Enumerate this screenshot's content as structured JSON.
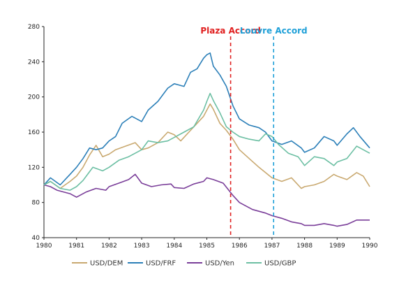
{
  "chart_data": {
    "type": "line",
    "title": "",
    "xlabel": "",
    "ylabel": "",
    "xlim": [
      1980,
      1990
    ],
    "ylim": [
      40,
      280
    ],
    "x_ticks": [
      1980,
      1981,
      1982,
      1983,
      1984,
      1985,
      1986,
      1987,
      1988,
      1989,
      1990
    ],
    "y_ticks": [
      40,
      80,
      120,
      160,
      200,
      240,
      280
    ],
    "grid": false,
    "legend_position": "bottom",
    "series": [
      {
        "name": "USD/DEM",
        "color": "#c9a970",
        "points": [
          [
            1980,
            100
          ],
          [
            1980.2,
            104
          ],
          [
            1980.5,
            96
          ],
          [
            1980.8,
            104
          ],
          [
            1981,
            110
          ],
          [
            1981.2,
            120
          ],
          [
            1981.4,
            134
          ],
          [
            1981.6,
            145
          ],
          [
            1981.8,
            132
          ],
          [
            1982,
            135
          ],
          [
            1982.2,
            140
          ],
          [
            1982.5,
            144
          ],
          [
            1982.8,
            148
          ],
          [
            1983,
            140
          ],
          [
            1983.2,
            142
          ],
          [
            1983.5,
            148
          ],
          [
            1983.8,
            160
          ],
          [
            1984,
            157
          ],
          [
            1984.2,
            150
          ],
          [
            1984.5,
            162
          ],
          [
            1984.7,
            170
          ],
          [
            1984.9,
            178
          ],
          [
            1985,
            185
          ],
          [
            1985.1,
            192
          ],
          [
            1985.2,
            186
          ],
          [
            1985.4,
            170
          ],
          [
            1985.6,
            162
          ],
          [
            1985.8,
            152
          ],
          [
            1986,
            140
          ],
          [
            1986.3,
            130
          ],
          [
            1986.6,
            120
          ],
          [
            1986.8,
            114
          ],
          [
            1987,
            108
          ],
          [
            1987.3,
            104
          ],
          [
            1987.6,
            108
          ],
          [
            1987.9,
            96
          ],
          [
            1988,
            98
          ],
          [
            1988.3,
            100
          ],
          [
            1988.6,
            104
          ],
          [
            1988.9,
            112
          ],
          [
            1989,
            110
          ],
          [
            1989.3,
            106
          ],
          [
            1989.6,
            114
          ],
          [
            1989.8,
            110
          ],
          [
            1990,
            98
          ]
        ]
      },
      {
        "name": "USD/FRF",
        "color": "#2b7fb8",
        "points": [
          [
            1980,
            100
          ],
          [
            1980.2,
            108
          ],
          [
            1980.5,
            100
          ],
          [
            1980.8,
            112
          ],
          [
            1981,
            120
          ],
          [
            1981.2,
            130
          ],
          [
            1981.4,
            142
          ],
          [
            1981.6,
            140
          ],
          [
            1981.8,
            142
          ],
          [
            1982,
            150
          ],
          [
            1982.2,
            155
          ],
          [
            1982.4,
            170
          ],
          [
            1982.7,
            178
          ],
          [
            1983,
            172
          ],
          [
            1983.2,
            185
          ],
          [
            1983.5,
            195
          ],
          [
            1983.8,
            210
          ],
          [
            1984,
            215
          ],
          [
            1984.3,
            212
          ],
          [
            1984.5,
            228
          ],
          [
            1984.7,
            232
          ],
          [
            1984.9,
            244
          ],
          [
            1985,
            248
          ],
          [
            1985.1,
            250
          ],
          [
            1985.2,
            235
          ],
          [
            1985.4,
            225
          ],
          [
            1985.6,
            212
          ],
          [
            1985.8,
            190
          ],
          [
            1986,
            175
          ],
          [
            1986.3,
            168
          ],
          [
            1986.6,
            165
          ],
          [
            1986.8,
            160
          ],
          [
            1987,
            150
          ],
          [
            1987.3,
            146
          ],
          [
            1987.6,
            150
          ],
          [
            1987.9,
            142
          ],
          [
            1988,
            137
          ],
          [
            1988.3,
            142
          ],
          [
            1988.6,
            155
          ],
          [
            1988.9,
            150
          ],
          [
            1989,
            145
          ],
          [
            1989.3,
            158
          ],
          [
            1989.5,
            165
          ],
          [
            1989.7,
            155
          ],
          [
            1990,
            142
          ]
        ]
      },
      {
        "name": "USD/Yen",
        "color": "#7a3e99",
        "points": [
          [
            1980,
            100
          ],
          [
            1980.2,
            98
          ],
          [
            1980.4,
            94
          ],
          [
            1980.6,
            92
          ],
          [
            1980.8,
            90
          ],
          [
            1981,
            86
          ],
          [
            1981.3,
            92
          ],
          [
            1981.6,
            96
          ],
          [
            1981.9,
            94
          ],
          [
            1982,
            98
          ],
          [
            1982.3,
            102
          ],
          [
            1982.6,
            106
          ],
          [
            1982.8,
            112
          ],
          [
            1983,
            102
          ],
          [
            1983.3,
            98
          ],
          [
            1983.6,
            100
          ],
          [
            1983.9,
            101
          ],
          [
            1984,
            97
          ],
          [
            1984.3,
            96
          ],
          [
            1984.6,
            101
          ],
          [
            1984.9,
            104
          ],
          [
            1985,
            108
          ],
          [
            1985.2,
            106
          ],
          [
            1985.5,
            102
          ],
          [
            1985.8,
            88
          ],
          [
            1986,
            80
          ],
          [
            1986.4,
            72
          ],
          [
            1986.8,
            68
          ],
          [
            1987,
            65
          ],
          [
            1987.3,
            62
          ],
          [
            1987.6,
            58
          ],
          [
            1987.9,
            56
          ],
          [
            1988,
            54
          ],
          [
            1988.3,
            54
          ],
          [
            1988.6,
            56
          ],
          [
            1988.9,
            54
          ],
          [
            1989,
            53
          ],
          [
            1989.3,
            55
          ],
          [
            1989.6,
            60
          ],
          [
            1990,
            60
          ]
        ]
      },
      {
        "name": "USD/GBP",
        "color": "#6cbfa3",
        "points": [
          [
            1980,
            100
          ],
          [
            1980.2,
            104
          ],
          [
            1980.5,
            96
          ],
          [
            1980.8,
            94
          ],
          [
            1981,
            98
          ],
          [
            1981.2,
            105
          ],
          [
            1981.5,
            120
          ],
          [
            1981.8,
            116
          ],
          [
            1982,
            120
          ],
          [
            1982.3,
            128
          ],
          [
            1982.6,
            132
          ],
          [
            1982.8,
            136
          ],
          [
            1983,
            140
          ],
          [
            1983.2,
            150
          ],
          [
            1983.5,
            148
          ],
          [
            1983.8,
            150
          ],
          [
            1984,
            154
          ],
          [
            1984.3,
            160
          ],
          [
            1984.6,
            166
          ],
          [
            1984.9,
            185
          ],
          [
            1985,
            195
          ],
          [
            1985.1,
            204
          ],
          [
            1985.2,
            196
          ],
          [
            1985.4,
            182
          ],
          [
            1985.6,
            166
          ],
          [
            1985.8,
            160
          ],
          [
            1986,
            155
          ],
          [
            1986.3,
            152
          ],
          [
            1986.6,
            150
          ],
          [
            1986.8,
            158
          ],
          [
            1987,
            155
          ],
          [
            1987.2,
            146
          ],
          [
            1987.5,
            136
          ],
          [
            1987.8,
            132
          ],
          [
            1988,
            122
          ],
          [
            1988.3,
            132
          ],
          [
            1988.6,
            130
          ],
          [
            1988.9,
            122
          ],
          [
            1989,
            126
          ],
          [
            1989.3,
            130
          ],
          [
            1989.6,
            144
          ],
          [
            1989.8,
            140
          ],
          [
            1990,
            136
          ]
        ]
      }
    ],
    "annotations": [
      {
        "label": "Plaza Accord",
        "x": 1985.73,
        "color": "#e02020"
      },
      {
        "label": "Louvre Accord",
        "x": 1987.05,
        "color": "#1fa0d8"
      }
    ]
  }
}
